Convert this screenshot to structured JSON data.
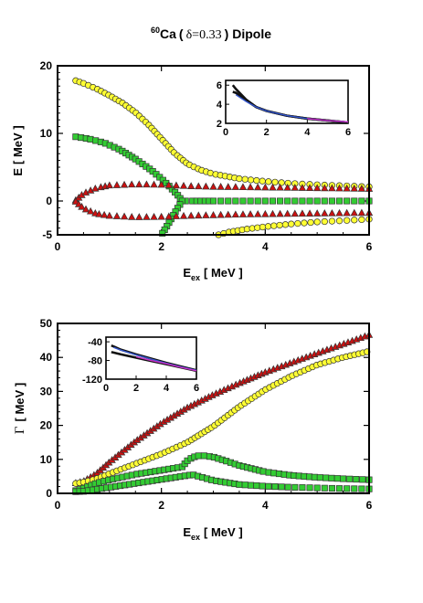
{
  "title": {
    "nucleus_mass": "60",
    "element": "Ca",
    "open": "(",
    "deformation_symbol": "δ",
    "deformation_value": "=0.33",
    "close": ")",
    "mode": "Dipole"
  },
  "colors": {
    "yellow": "#ffff33",
    "green": "#33cc33",
    "red": "#cc1111",
    "inset_dark": "#111111",
    "inset_blue": "#3355cc",
    "inset_purple": "#cc33cc"
  },
  "chart_data": [
    {
      "type": "scatter",
      "xlabel": {
        "main": "E",
        "sub": "ex",
        "unit": "[ MeV ]"
      },
      "ylabel": {
        "main": "E",
        "unit": "[ MeV ]"
      },
      "xlim": [
        0,
        6
      ],
      "ylim": [
        -5,
        20
      ],
      "x_ticks": [
        "0",
        "2",
        "4",
        "6"
      ],
      "y_ticks": [
        "-5",
        "0",
        "10",
        "20"
      ],
      "series": [
        {
          "marker": "circle",
          "color": "yellow",
          "points": [
            [
              0.35,
              17.8
            ],
            [
              0.5,
              17.4
            ],
            [
              0.75,
              16.6
            ],
            [
              1.0,
              15.6
            ],
            [
              1.25,
              14.5
            ],
            [
              1.5,
              13.1
            ],
            [
              1.75,
              11.3
            ],
            [
              2.0,
              9.2
            ],
            [
              2.25,
              7.1
            ],
            [
              2.5,
              5.5
            ],
            [
              2.75,
              4.6
            ],
            [
              3.0,
              4.0
            ],
            [
              3.5,
              3.3
            ],
            [
              4.0,
              2.9
            ],
            [
              4.5,
              2.6
            ],
            [
              5.0,
              2.4
            ],
            [
              5.5,
              2.25
            ],
            [
              6.0,
              2.1
            ]
          ]
        },
        {
          "marker": "circle",
          "color": "yellow",
          "points": [
            [
              3.1,
              -5.0
            ],
            [
              3.3,
              -4.6
            ],
            [
              3.6,
              -4.2
            ],
            [
              4.0,
              -3.8
            ],
            [
              4.5,
              -3.4
            ],
            [
              5.0,
              -3.1
            ],
            [
              5.5,
              -2.9
            ],
            [
              6.0,
              -2.7
            ]
          ]
        },
        {
          "marker": "square",
          "color": "green",
          "points": [
            [
              0.35,
              9.5
            ],
            [
              0.6,
              9.2
            ],
            [
              0.9,
              8.6
            ],
            [
              1.2,
              7.6
            ],
            [
              1.5,
              6.2
            ],
            [
              1.8,
              4.6
            ],
            [
              2.0,
              3.3
            ],
            [
              2.15,
              2.2
            ],
            [
              2.3,
              1.0
            ],
            [
              2.4,
              0.0
            ],
            [
              2.6,
              0.0
            ],
            [
              3.0,
              0.0
            ],
            [
              3.5,
              0.0
            ],
            [
              4.0,
              0.0
            ],
            [
              4.5,
              0.0
            ],
            [
              5.0,
              0.0
            ],
            [
              5.5,
              0.0
            ],
            [
              6.0,
              0.0
            ]
          ]
        },
        {
          "marker": "square",
          "color": "green",
          "points": [
            [
              2.4,
              0.0
            ],
            [
              2.3,
              -1.2
            ],
            [
              2.2,
              -2.5
            ],
            [
              2.1,
              -3.8
            ],
            [
              2.0,
              -5.0
            ]
          ]
        },
        {
          "marker": "triangle",
          "color": "red",
          "points": [
            [
              0.35,
              0.1
            ],
            [
              0.5,
              1.1
            ],
            [
              0.75,
              1.9
            ],
            [
              1.0,
              2.3
            ],
            [
              1.5,
              2.45
            ],
            [
              2.0,
              2.4
            ],
            [
              2.5,
              2.2
            ],
            [
              3.0,
              2.1
            ],
            [
              3.5,
              2.05
            ],
            [
              4.0,
              2.0
            ],
            [
              4.5,
              1.95
            ],
            [
              5.0,
              1.9
            ],
            [
              5.5,
              1.85
            ],
            [
              6.0,
              1.8
            ]
          ]
        },
        {
          "marker": "triangle",
          "color": "red",
          "points": [
            [
              0.35,
              -0.1
            ],
            [
              0.5,
              -1.1
            ],
            [
              0.75,
              -1.9
            ],
            [
              1.0,
              -2.2
            ],
            [
              1.5,
              -2.4
            ],
            [
              2.0,
              -2.35
            ],
            [
              2.5,
              -2.2
            ],
            [
              3.0,
              -2.1
            ],
            [
              3.5,
              -2.0
            ],
            [
              4.0,
              -1.95
            ],
            [
              4.5,
              -1.9
            ],
            [
              5.0,
              -1.85
            ],
            [
              5.5,
              -1.8
            ],
            [
              6.0,
              -1.75
            ]
          ]
        }
      ],
      "inset": {
        "type": "line",
        "xlim": [
          0,
          6
        ],
        "ylim": [
          2,
          6.5
        ],
        "x_ticks": [
          "0",
          "2",
          "4",
          "6"
        ],
        "y_ticks": [
          "2",
          "4",
          "6"
        ],
        "series": [
          {
            "color": "inset_dark",
            "points": [
              [
                0.35,
                6.0
              ],
              [
                0.5,
                5.6
              ],
              [
                1.0,
                4.5
              ],
              [
                1.5,
                3.7
              ],
              [
                2.0,
                3.3
              ],
              [
                3.0,
                2.8
              ],
              [
                4.0,
                2.5
              ],
              [
                5.0,
                2.3
              ],
              [
                6.0,
                2.1
              ]
            ]
          },
          {
            "color": "inset_dark",
            "points": [
              [
                0.35,
                5.3
              ],
              [
                0.5,
                5.2
              ],
              [
                1.0,
                4.4
              ],
              [
                1.5,
                3.7
              ],
              [
                2.0,
                3.3
              ],
              [
                3.0,
                2.8
              ],
              [
                4.0,
                2.5
              ],
              [
                5.0,
                2.3
              ],
              [
                6.0,
                2.1
              ]
            ]
          },
          {
            "color": "inset_blue",
            "points": [
              [
                0.5,
                5.0
              ],
              [
                1.0,
                4.3
              ],
              [
                1.5,
                3.7
              ],
              [
                2.0,
                3.3
              ],
              [
                3.0,
                2.8
              ],
              [
                4.0,
                2.5
              ],
              [
                5.0,
                2.3
              ],
              [
                6.0,
                2.15
              ]
            ]
          },
          {
            "color": "inset_purple",
            "points": [
              [
                4.0,
                2.5
              ],
              [
                5.0,
                2.3
              ],
              [
                6.0,
                2.15
              ]
            ]
          }
        ]
      }
    },
    {
      "type": "scatter",
      "xlabel": {
        "main": "E",
        "sub": "ex",
        "unit": "[ MeV ]"
      },
      "ylabel": {
        "main": "Γ",
        "unit": "[ MeV ]"
      },
      "xlim": [
        0,
        6
      ],
      "ylim": [
        0,
        50
      ],
      "x_ticks": [
        "0",
        "2",
        "4",
        "6"
      ],
      "y_ticks": [
        "0",
        "10",
        "20",
        "30",
        "40",
        "50"
      ],
      "series": [
        {
          "marker": "triangle",
          "color": "red",
          "points": [
            [
              0.35,
              3.0
            ],
            [
              0.5,
              3.5
            ],
            [
              0.75,
              5.8
            ],
            [
              1.0,
              9.2
            ],
            [
              1.5,
              15.3
            ],
            [
              2.0,
              20.6
            ],
            [
              2.5,
              25.2
            ],
            [
              3.0,
              29.0
            ],
            [
              3.5,
              32.4
            ],
            [
              4.0,
              35.6
            ],
            [
              4.5,
              38.4
            ],
            [
              5.0,
              41.2
            ],
            [
              5.5,
              43.9
            ],
            [
              6.0,
              46.6
            ]
          ]
        },
        {
          "marker": "circle",
          "color": "yellow",
          "points": [
            [
              0.35,
              2.9
            ],
            [
              0.5,
              3.3
            ],
            [
              0.75,
              4.3
            ],
            [
              1.0,
              5.8
            ],
            [
              1.5,
              8.7
            ],
            [
              2.0,
              11.6
            ],
            [
              2.5,
              15.0
            ],
            [
              3.0,
              19.7
            ],
            [
              3.5,
              25.5
            ],
            [
              4.0,
              30.5
            ],
            [
              4.5,
              34.5
            ],
            [
              5.0,
              37.8
            ],
            [
              5.5,
              40.0
            ],
            [
              6.0,
              41.8
            ]
          ]
        },
        {
          "marker": "square",
          "color": "green",
          "points": [
            [
              0.35,
              0.8
            ],
            [
              0.5,
              1.5
            ],
            [
              0.75,
              3.0
            ],
            [
              1.0,
              4.0
            ],
            [
              1.5,
              5.6
            ],
            [
              2.0,
              6.8
            ],
            [
              2.4,
              7.8
            ],
            [
              2.5,
              9.6
            ],
            [
              2.6,
              10.6
            ],
            [
              2.75,
              11.2
            ],
            [
              3.0,
              10.7
            ],
            [
              3.25,
              9.5
            ],
            [
              3.5,
              8.2
            ],
            [
              4.0,
              6.3
            ],
            [
              4.5,
              5.3
            ],
            [
              5.0,
              4.7
            ],
            [
              5.5,
              4.3
            ],
            [
              6.0,
              4.0
            ]
          ]
        },
        {
          "marker": "square",
          "color": "green",
          "points": [
            [
              0.35,
              0.5
            ],
            [
              0.5,
              0.6
            ],
            [
              2.6,
              5.5
            ],
            [
              3.0,
              3.8
            ],
            [
              3.5,
              2.6
            ],
            [
              4.0,
              2.1
            ],
            [
              4.5,
              1.8
            ],
            [
              5.0,
              1.6
            ],
            [
              5.5,
              1.4
            ],
            [
              6.0,
              1.3
            ]
          ]
        }
      ],
      "inset": {
        "type": "line",
        "xlim": [
          0,
          6
        ],
        "ylim": [
          -120,
          -30
        ],
        "x_ticks": [
          "0",
          "2",
          "4",
          "6"
        ],
        "y_ticks": [
          "-40",
          "-80",
          "-120"
        ],
        "series": [
          {
            "color": "inset_dark",
            "points": [
              [
                0.35,
                -48
              ],
              [
                0.5,
                -50
              ],
              [
                1.0,
                -57
              ],
              [
                2.0,
                -67
              ],
              [
                3.0,
                -76
              ],
              [
                4.0,
                -85
              ],
              [
                5.0,
                -93
              ],
              [
                6.0,
                -101
              ]
            ]
          },
          {
            "color": "inset_dark",
            "points": [
              [
                0.35,
                -62
              ],
              [
                0.5,
                -63
              ],
              [
                1.0,
                -67
              ],
              [
                2.0,
                -74
              ],
              [
                3.0,
                -81
              ],
              [
                4.0,
                -88
              ],
              [
                5.0,
                -95
              ],
              [
                6.0,
                -102
              ]
            ]
          },
          {
            "color": "inset_blue",
            "points": [
              [
                0.5,
                -52
              ],
              [
                1.0,
                -58
              ],
              [
                2.0,
                -68
              ],
              [
                3.0,
                -77
              ],
              [
                4.0,
                -86
              ],
              [
                5.0,
                -94
              ],
              [
                6.0,
                -101
              ]
            ]
          },
          {
            "color": "inset_purple",
            "points": [
              [
                2.0,
                -72
              ],
              [
                3.0,
                -80
              ],
              [
                4.0,
                -87
              ],
              [
                5.0,
                -95
              ],
              [
                6.0,
                -102
              ]
            ]
          }
        ]
      }
    }
  ]
}
